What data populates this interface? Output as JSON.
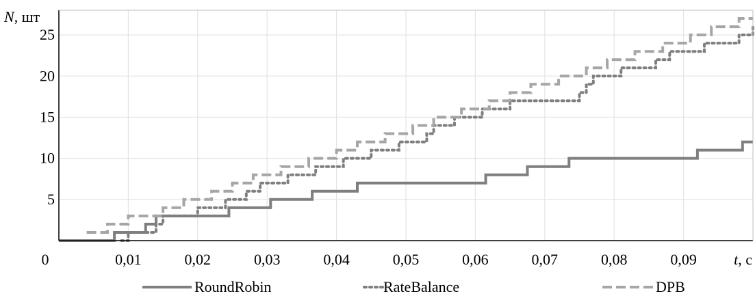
{
  "chart_data": {
    "type": "line",
    "step": true,
    "xlabel": {
      "var": "t",
      "unit": ", с"
    },
    "ylabel": {
      "var": "N",
      "unit": ", шт"
    },
    "xlim": [
      0,
      0.1
    ],
    "ylim": [
      0,
      28
    ],
    "origin_label": "0",
    "x_ticks": [
      {
        "v": 0.01,
        "label": "0,01"
      },
      {
        "v": 0.02,
        "label": "0,02"
      },
      {
        "v": 0.03,
        "label": "0,03"
      },
      {
        "v": 0.04,
        "label": "0,04"
      },
      {
        "v": 0.05,
        "label": "0,05"
      },
      {
        "v": 0.06,
        "label": "0,06"
      },
      {
        "v": 0.07,
        "label": "0,07"
      },
      {
        "v": 0.08,
        "label": "0,08"
      },
      {
        "v": 0.09,
        "label": "0,09"
      }
    ],
    "y_ticks": [
      {
        "v": 5,
        "label": "5"
      },
      {
        "v": 10,
        "label": "10"
      },
      {
        "v": 15,
        "label": "15"
      },
      {
        "v": 20,
        "label": "20"
      },
      {
        "v": 25,
        "label": "25"
      }
    ],
    "grid": true,
    "legend_position": "bottom",
    "series": [
      {
        "name": "RoundRobin",
        "style": "solid",
        "color": "#7f7f7f",
        "steps": [
          [
            0.0,
            0
          ],
          [
            0.008,
            1
          ],
          [
            0.0125,
            2
          ],
          [
            0.014,
            3
          ],
          [
            0.0245,
            4
          ],
          [
            0.0305,
            5
          ],
          [
            0.0365,
            6
          ],
          [
            0.043,
            7
          ],
          [
            0.0615,
            8
          ],
          [
            0.0675,
            9
          ],
          [
            0.0735,
            10
          ],
          [
            0.092,
            11
          ],
          [
            0.0985,
            12
          ]
        ],
        "x_end": 0.1
      },
      {
        "name": "RateBalance",
        "style": "dotted",
        "color": "#7f7f7f",
        "steps": [
          [
            0.009,
            0
          ],
          [
            0.01,
            1
          ],
          [
            0.014,
            2
          ],
          [
            0.015,
            3
          ],
          [
            0.02,
            4
          ],
          [
            0.024,
            5
          ],
          [
            0.027,
            6
          ],
          [
            0.029,
            7
          ],
          [
            0.033,
            8
          ],
          [
            0.037,
            9
          ],
          [
            0.041,
            10
          ],
          [
            0.045,
            11
          ],
          [
            0.049,
            12
          ],
          [
            0.053,
            13
          ],
          [
            0.054,
            14
          ],
          [
            0.057,
            15
          ],
          [
            0.061,
            16
          ],
          [
            0.065,
            17
          ],
          [
            0.075,
            18
          ],
          [
            0.076,
            19
          ],
          [
            0.077,
            20
          ],
          [
            0.081,
            21
          ],
          [
            0.086,
            22
          ],
          [
            0.088,
            23
          ],
          [
            0.093,
            24
          ],
          [
            0.098,
            25
          ],
          [
            0.1,
            26
          ]
        ],
        "x_end": 0.1
      },
      {
        "name": "DPB",
        "style": "dashed",
        "color": "#a6a6a6",
        "steps": [
          [
            0.004,
            1
          ],
          [
            0.007,
            2
          ],
          [
            0.01,
            3
          ],
          [
            0.015,
            4
          ],
          [
            0.018,
            5
          ],
          [
            0.022,
            6
          ],
          [
            0.025,
            7
          ],
          [
            0.028,
            8
          ],
          [
            0.032,
            9
          ],
          [
            0.036,
            10
          ],
          [
            0.04,
            11
          ],
          [
            0.043,
            12
          ],
          [
            0.047,
            13
          ],
          [
            0.051,
            14
          ],
          [
            0.054,
            15
          ],
          [
            0.058,
            16
          ],
          [
            0.062,
            17
          ],
          [
            0.065,
            18
          ],
          [
            0.068,
            19
          ],
          [
            0.072,
            20
          ],
          [
            0.076,
            21
          ],
          [
            0.079,
            22
          ],
          [
            0.083,
            23
          ],
          [
            0.087,
            24
          ],
          [
            0.091,
            25
          ],
          [
            0.094,
            26
          ],
          [
            0.098,
            27
          ]
        ],
        "x_end": 0.1
      }
    ]
  }
}
